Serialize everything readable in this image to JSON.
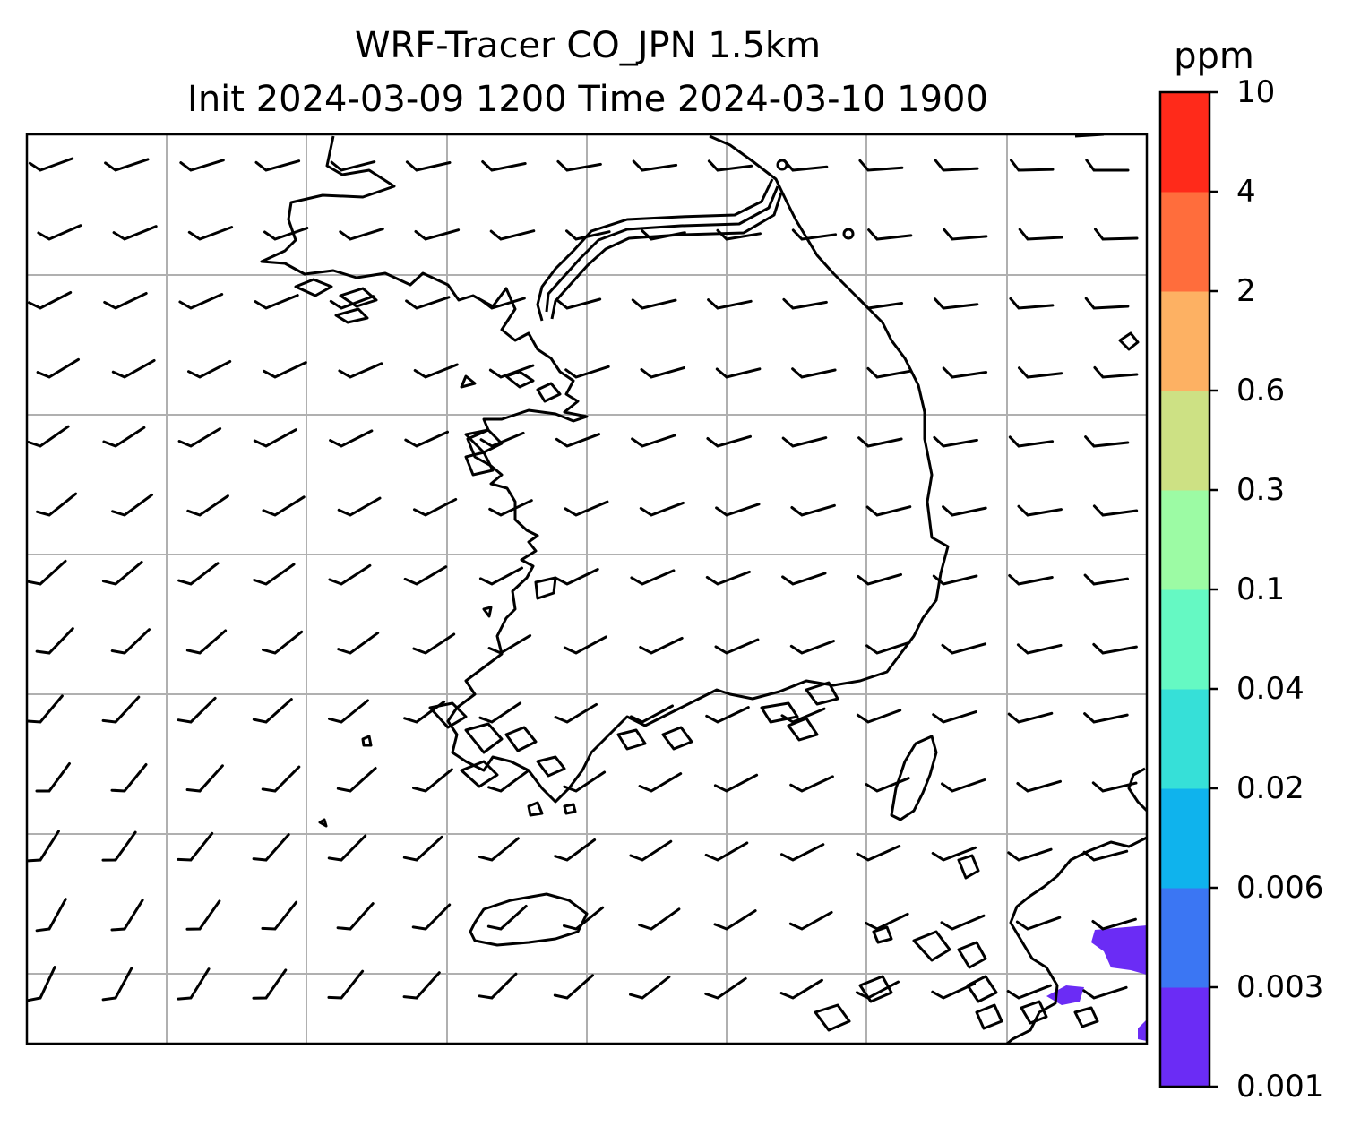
{
  "title": {
    "line1": "WRF-Tracer CO_JPN 1.5km",
    "line2": "Init 2024-03-09 1200 Time 2024-03-10 1900"
  },
  "colorbar": {
    "unit": "ppm",
    "levels": [
      "0.001",
      "0.003",
      "0.006",
      "0.02",
      "0.04",
      "0.1",
      "0.3",
      "0.6",
      "2",
      "4",
      "10"
    ],
    "colors": [
      "#6b2cf5",
      "#3b76f3",
      "#0fb3ed",
      "#36e0d8",
      "#65f9c3",
      "#9cfba4",
      "#cde184",
      "#fdb163",
      "#ff6d3c",
      "#ff2a1a"
    ]
  },
  "map": {
    "wind_barbs": "present",
    "coastlines": "present",
    "gridlines": true
  }
}
